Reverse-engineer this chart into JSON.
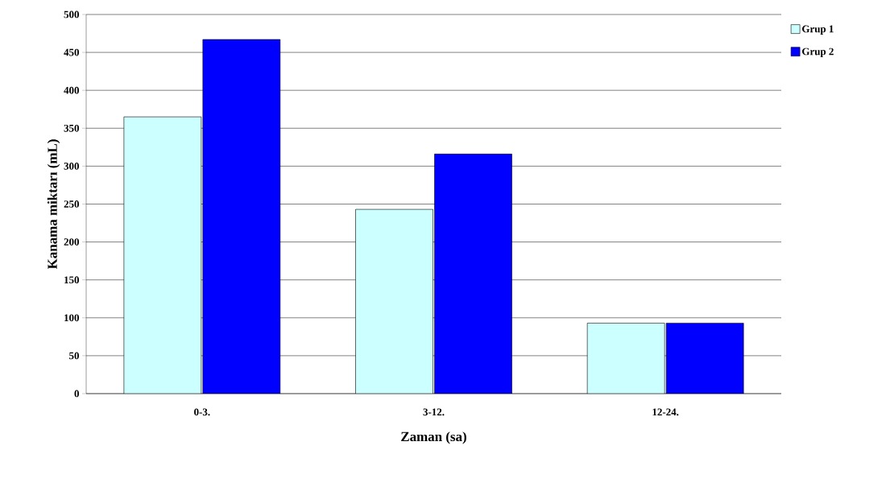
{
  "chart_data": {
    "type": "bar",
    "xlabel": "Zaman (sa)",
    "ylabel": "Kanama miktarı (mL)",
    "categories": [
      "0-3.",
      "3-12.",
      "12-24."
    ],
    "series": [
      {
        "name": "Grup 1",
        "color": "#ccffff",
        "values": [
          365,
          243,
          93
        ]
      },
      {
        "name": "Grup 2",
        "color": "#0000ff",
        "values": [
          467,
          316,
          93
        ]
      }
    ],
    "ylim": [
      0,
      500
    ],
    "yticks": [
      0,
      50,
      100,
      150,
      200,
      250,
      300,
      350,
      400,
      450,
      500
    ],
    "grid": "y",
    "legend": "right"
  }
}
